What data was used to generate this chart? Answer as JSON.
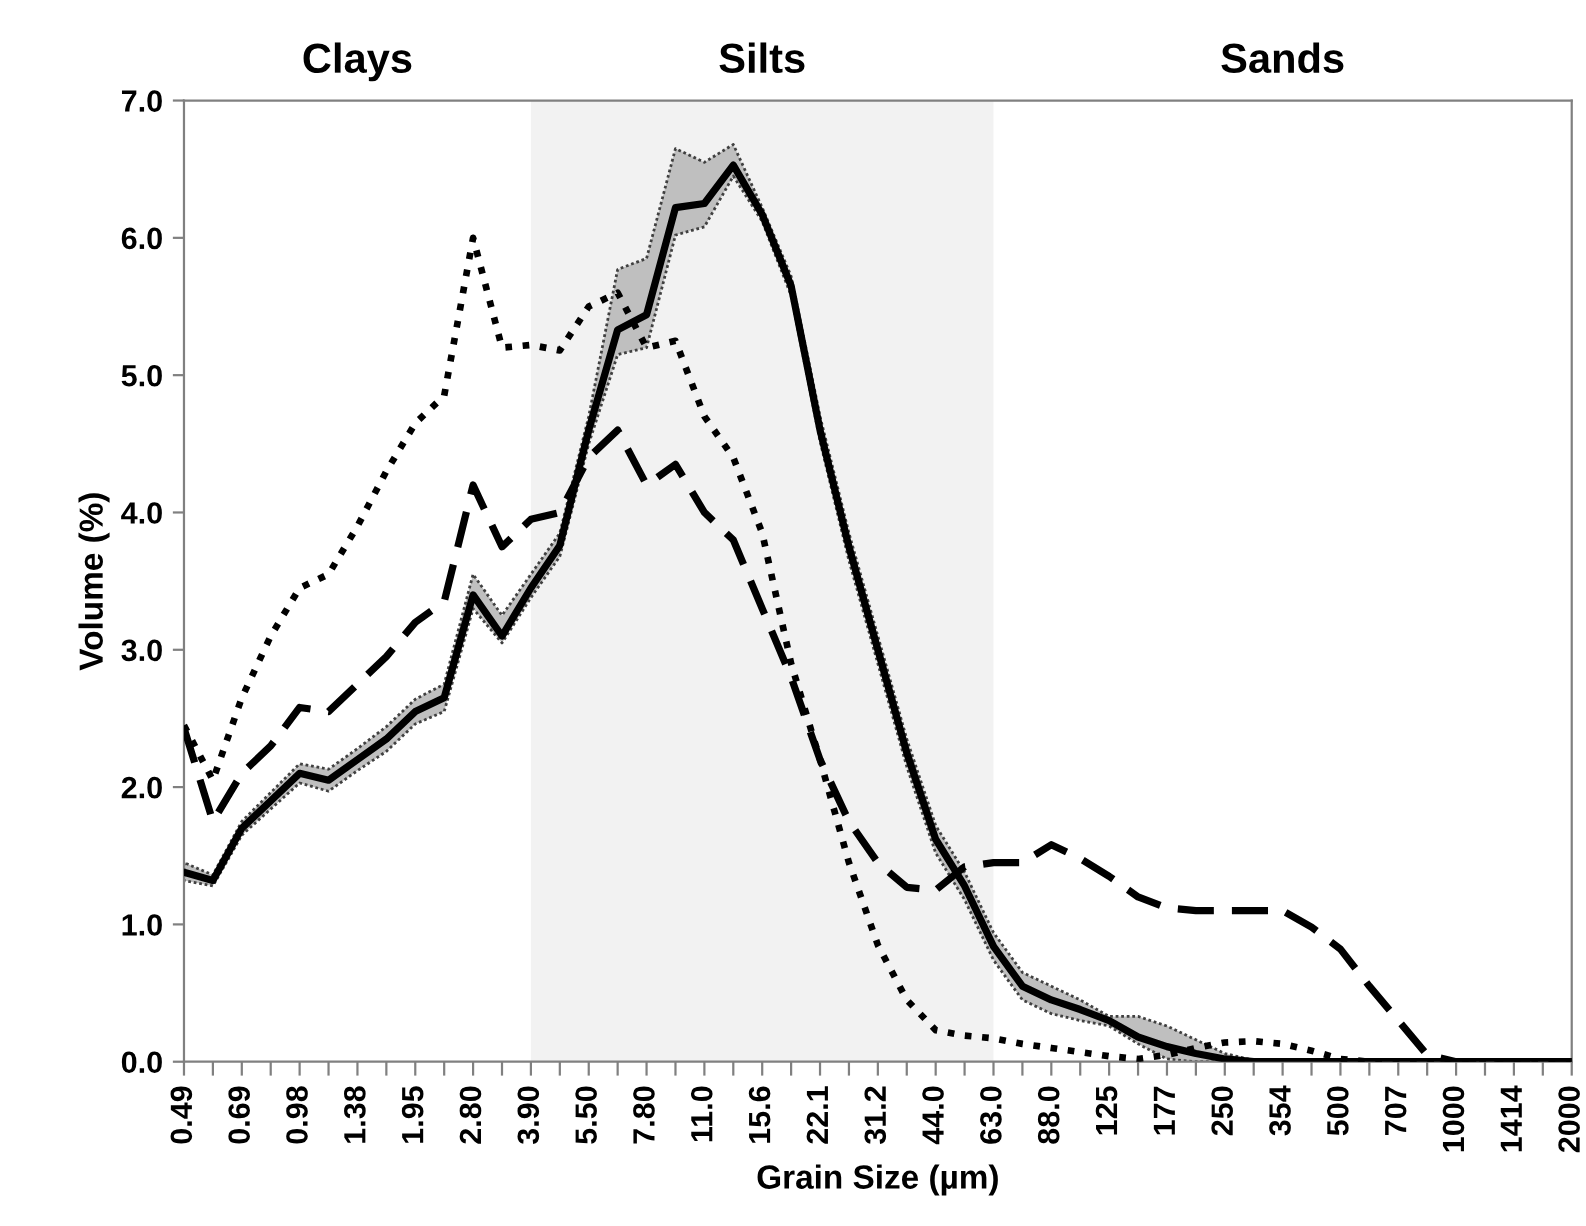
{
  "chart_data": {
    "type": "line",
    "xlabel": "Grain Size (µm)",
    "ylabel": "Volume (%)",
    "categories": [
      "0.49",
      null,
      "0.69",
      null,
      "0.98",
      null,
      "1.38",
      null,
      "1.95",
      null,
      "2.80",
      null,
      "3.90",
      null,
      "5.50",
      null,
      "7.80",
      null,
      "11.0",
      null,
      "15.6",
      null,
      "22.1",
      null,
      "31.2",
      null,
      "44.0",
      null,
      "63.0",
      null,
      "88.0",
      null,
      "125",
      null,
      "177",
      null,
      "250",
      null,
      "354",
      null,
      "500",
      null,
      "707",
      null,
      "1000",
      null,
      "1414",
      null,
      "2000"
    ],
    "ylim": [
      0,
      7
    ],
    "yticks": [
      {
        "value": 0,
        "label": "0.0"
      },
      {
        "value": 1,
        "label": "1.0"
      },
      {
        "value": 2,
        "label": "2.0"
      },
      {
        "value": 3,
        "label": "3.0"
      },
      {
        "value": 4,
        "label": "4.0"
      },
      {
        "value": 5,
        "label": "5.0"
      },
      {
        "value": 6,
        "label": "6.0"
      },
      {
        "value": 7,
        "label": "7.0"
      }
    ],
    "grid": false,
    "annotations": [
      "Clays",
      "Sands"
    ],
    "bands": [
      {
        "axis": "x",
        "from": "3.90",
        "to": "63.0",
        "label": "Silts",
        "color": "#f2f2f2"
      }
    ],
    "series": [
      {
        "color": "#000000",
        "line_style": "solid",
        "values": [
          1.38,
          1.32,
          1.7,
          1.9,
          2.1,
          2.05,
          2.2,
          2.35,
          2.55,
          2.65,
          3.4,
          3.1,
          3.45,
          3.76,
          4.6,
          5.33,
          5.44,
          6.22,
          6.25,
          6.53,
          6.17,
          5.65,
          4.6,
          3.75,
          3.0,
          2.25,
          1.62,
          1.28,
          0.84,
          0.55,
          0.45,
          0.38,
          0.3,
          0.18,
          0.11,
          0.06,
          0.02,
          0,
          0,
          0,
          0,
          0,
          0,
          0,
          0,
          0,
          0,
          0,
          0
        ],
        "lower": [
          1.32,
          1.28,
          1.65,
          1.84,
          2.03,
          1.97,
          2.12,
          2.26,
          2.46,
          2.55,
          3.3,
          3.05,
          3.38,
          3.68,
          4.5,
          5.15,
          5.2,
          6.02,
          6.08,
          6.45,
          6.12,
          5.58,
          4.52,
          3.65,
          2.9,
          2.15,
          1.52,
          1.18,
          0.74,
          0.45,
          0.35,
          0.3,
          0.26,
          0.13,
          0.02,
          0,
          0,
          0,
          0,
          0,
          0,
          0,
          0,
          0,
          0,
          0,
          0,
          0,
          0
        ],
        "upper": [
          1.45,
          1.36,
          1.75,
          1.96,
          2.17,
          2.13,
          2.28,
          2.44,
          2.64,
          2.75,
          3.55,
          3.25,
          3.55,
          3.85,
          4.7,
          5.77,
          5.85,
          6.65,
          6.55,
          6.68,
          6.22,
          5.72,
          4.7,
          3.85,
          3.1,
          2.35,
          1.72,
          1.38,
          0.94,
          0.65,
          0.55,
          0.45,
          0.33,
          0.33,
          0.26,
          0.16,
          0.06,
          0.01,
          0,
          0,
          0,
          0,
          0,
          0,
          0,
          0,
          0,
          0,
          0
        ]
      },
      {
        "color": "#000000",
        "line_style": "dashed",
        "values": [
          2.43,
          1.75,
          2.1,
          2.3,
          2.58,
          2.55,
          2.75,
          2.95,
          3.2,
          3.35,
          4.2,
          3.75,
          3.95,
          4.0,
          4.4,
          4.6,
          4.2,
          4.35,
          4.0,
          3.8,
          3.3,
          2.8,
          2.2,
          1.75,
          1.45,
          1.27,
          1.25,
          1.42,
          1.45,
          1.45,
          1.58,
          1.48,
          1.35,
          1.2,
          1.12,
          1.1,
          1.1,
          1.1,
          1.1,
          0.98,
          0.82,
          0.55,
          0.3,
          0.05,
          0,
          0,
          0,
          0,
          0
        ]
      },
      {
        "color": "#000000",
        "line_style": "dotted",
        "values": [
          2.45,
          2.05,
          2.65,
          3.1,
          3.45,
          3.55,
          3.9,
          4.3,
          4.65,
          4.85,
          6.0,
          5.2,
          5.22,
          5.18,
          5.5,
          5.6,
          5.2,
          5.25,
          4.7,
          4.4,
          3.85,
          2.9,
          2.2,
          1.45,
          0.85,
          0.45,
          0.23,
          0.19,
          0.17,
          0.13,
          0.1,
          0.07,
          0.04,
          0.02,
          0.05,
          0.1,
          0.14,
          0.15,
          0.13,
          0.08,
          0.02,
          0,
          0,
          0,
          0,
          0,
          0,
          0,
          0
        ]
      }
    ]
  }
}
